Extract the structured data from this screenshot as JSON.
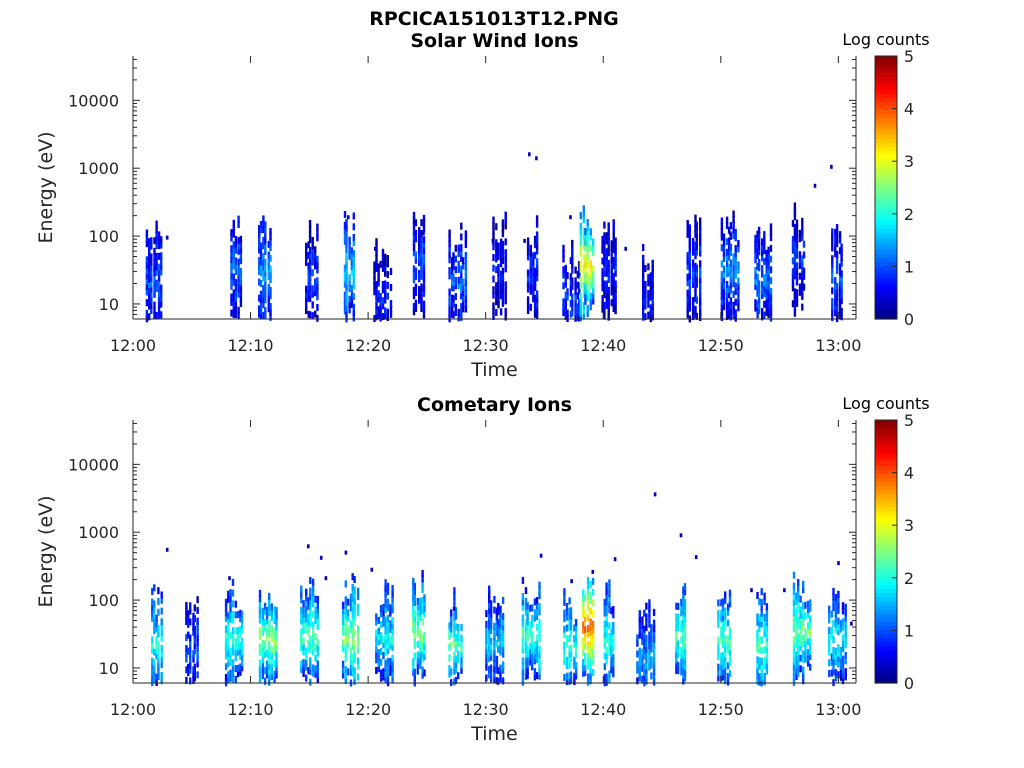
{
  "figure_title": "RPCICA151013T12.PNG",
  "chart_data": [
    {
      "type": "heatmap",
      "title": "Solar Wind Ions",
      "xlabel": "Time",
      "ylabel": "Energy (eV)",
      "x_ticks": [
        "12:00",
        "12:10",
        "12:20",
        "12:30",
        "12:40",
        "12:50",
        "13:00"
      ],
      "y_ticks": [
        "10",
        "100",
        "1000",
        "10000"
      ],
      "y_scale": "log",
      "x_range_minutes": [
        0,
        61.5
      ],
      "y_range_ev": [
        6,
        45000
      ],
      "colorbar": {
        "label": "Log counts",
        "ticks": [
          "0",
          "1",
          "2",
          "3",
          "4",
          "5"
        ],
        "range": [
          0,
          5
        ],
        "colormap": "jet"
      },
      "clusters": [
        {
          "t": 1.8,
          "e": 22,
          "logc": 1.0
        },
        {
          "t": 8.8,
          "e": 32,
          "logc": 1.2
        },
        {
          "t": 11.2,
          "e": 28,
          "logc": 1.4
        },
        {
          "t": 15.2,
          "e": 26,
          "logc": 0.9
        },
        {
          "t": 18.4,
          "e": 30,
          "logc": 1.7
        },
        {
          "t": 21.2,
          "e": 12,
          "logc": 0.7
        },
        {
          "t": 24.3,
          "e": 40,
          "logc": 1.0
        },
        {
          "t": 27.6,
          "e": 20,
          "logc": 1.1
        },
        {
          "t": 31.2,
          "e": 30,
          "logc": 0.6
        },
        {
          "t": 34.0,
          "e": 28,
          "logc": 0.9
        },
        {
          "t": 37.3,
          "e": 12,
          "logc": 0.9
        },
        {
          "t": 38.6,
          "e": 38,
          "logc": 3.2
        },
        {
          "t": 40.5,
          "e": 30,
          "logc": 0.7
        },
        {
          "t": 43.8,
          "e": 10,
          "logc": 0.7
        },
        {
          "t": 47.7,
          "e": 28,
          "logc": 0.9
        },
        {
          "t": 50.8,
          "e": 32,
          "logc": 1.3
        },
        {
          "t": 53.6,
          "e": 22,
          "logc": 1.2
        },
        {
          "t": 56.6,
          "e": 45,
          "logc": 0.9
        },
        {
          "t": 59.9,
          "e": 24,
          "logc": 1.0
        }
      ],
      "sparse_points": [
        {
          "t": 2.8,
          "e": 95
        },
        {
          "t": 9.0,
          "e": 85
        },
        {
          "t": 18.2,
          "e": 190
        },
        {
          "t": 20.5,
          "e": 65
        },
        {
          "t": 24.6,
          "e": 110
        },
        {
          "t": 30.5,
          "e": 85
        },
        {
          "t": 33.6,
          "e": 1600
        },
        {
          "t": 34.2,
          "e": 1400
        },
        {
          "t": 33.2,
          "e": 85
        },
        {
          "t": 37.1,
          "e": 190
        },
        {
          "t": 41.8,
          "e": 65
        },
        {
          "t": 50.7,
          "e": 110
        },
        {
          "t": 57.9,
          "e": 550
        },
        {
          "t": 59.3,
          "e": 1050
        }
      ]
    },
    {
      "type": "heatmap",
      "title": "Cometary Ions",
      "xlabel": "Time",
      "ylabel": "Energy (eV)",
      "x_ticks": [
        "12:00",
        "12:10",
        "12:20",
        "12:30",
        "12:40",
        "12:50",
        "13:00"
      ],
      "y_ticks": [
        "10",
        "100",
        "1000",
        "10000"
      ],
      "y_scale": "log",
      "x_range_minutes": [
        0,
        61.5
      ],
      "y_range_ev": [
        6,
        45000
      ],
      "colorbar": {
        "label": "Log counts",
        "ticks": [
          "0",
          "1",
          "2",
          "3",
          "4",
          "5"
        ],
        "range": [
          0,
          5
        ],
        "colormap": "jet"
      },
      "clusters": [
        {
          "t": 2.0,
          "e": 22,
          "logc": 2.0
        },
        {
          "t": 5.0,
          "e": 18,
          "logc": 1.0
        },
        {
          "t": 8.6,
          "e": 26,
          "logc": 2.1
        },
        {
          "t": 11.5,
          "e": 26,
          "logc": 2.6
        },
        {
          "t": 15.0,
          "e": 30,
          "logc": 2.3
        },
        {
          "t": 18.5,
          "e": 28,
          "logc": 2.6
        },
        {
          "t": 21.4,
          "e": 26,
          "logc": 1.9
        },
        {
          "t": 24.3,
          "e": 34,
          "logc": 2.5
        },
        {
          "t": 27.4,
          "e": 22,
          "logc": 2.3
        },
        {
          "t": 30.8,
          "e": 24,
          "logc": 1.6
        },
        {
          "t": 33.9,
          "e": 30,
          "logc": 2.2
        },
        {
          "t": 37.2,
          "e": 20,
          "logc": 2.1
        },
        {
          "t": 38.7,
          "e": 40,
          "logc": 3.9
        },
        {
          "t": 40.5,
          "e": 26,
          "logc": 2.1
        },
        {
          "t": 43.6,
          "e": 14,
          "logc": 1.4
        },
        {
          "t": 46.6,
          "e": 30,
          "logc": 2.3
        },
        {
          "t": 50.3,
          "e": 26,
          "logc": 2.3
        },
        {
          "t": 53.5,
          "e": 22,
          "logc": 2.2
        },
        {
          "t": 56.9,
          "e": 34,
          "logc": 2.5
        },
        {
          "t": 59.9,
          "e": 26,
          "logc": 1.9
        }
      ],
      "sparse_points": [
        {
          "t": 2.8,
          "e": 550
        },
        {
          "t": 8.1,
          "e": 210
        },
        {
          "t": 14.8,
          "e": 620
        },
        {
          "t": 15.9,
          "e": 420
        },
        {
          "t": 16.3,
          "e": 210
        },
        {
          "t": 18.0,
          "e": 500
        },
        {
          "t": 20.2,
          "e": 280
        },
        {
          "t": 27.2,
          "e": 75
        },
        {
          "t": 34.6,
          "e": 450
        },
        {
          "t": 37.2,
          "e": 190
        },
        {
          "t": 39.0,
          "e": 260
        },
        {
          "t": 40.9,
          "e": 400
        },
        {
          "t": 44.3,
          "e": 3600
        },
        {
          "t": 46.5,
          "e": 900
        },
        {
          "t": 47.8,
          "e": 430
        },
        {
          "t": 52.5,
          "e": 140
        },
        {
          "t": 55.3,
          "e": 140
        },
        {
          "t": 59.9,
          "e": 350
        },
        {
          "t": 61.0,
          "e": 45
        }
      ]
    }
  ]
}
